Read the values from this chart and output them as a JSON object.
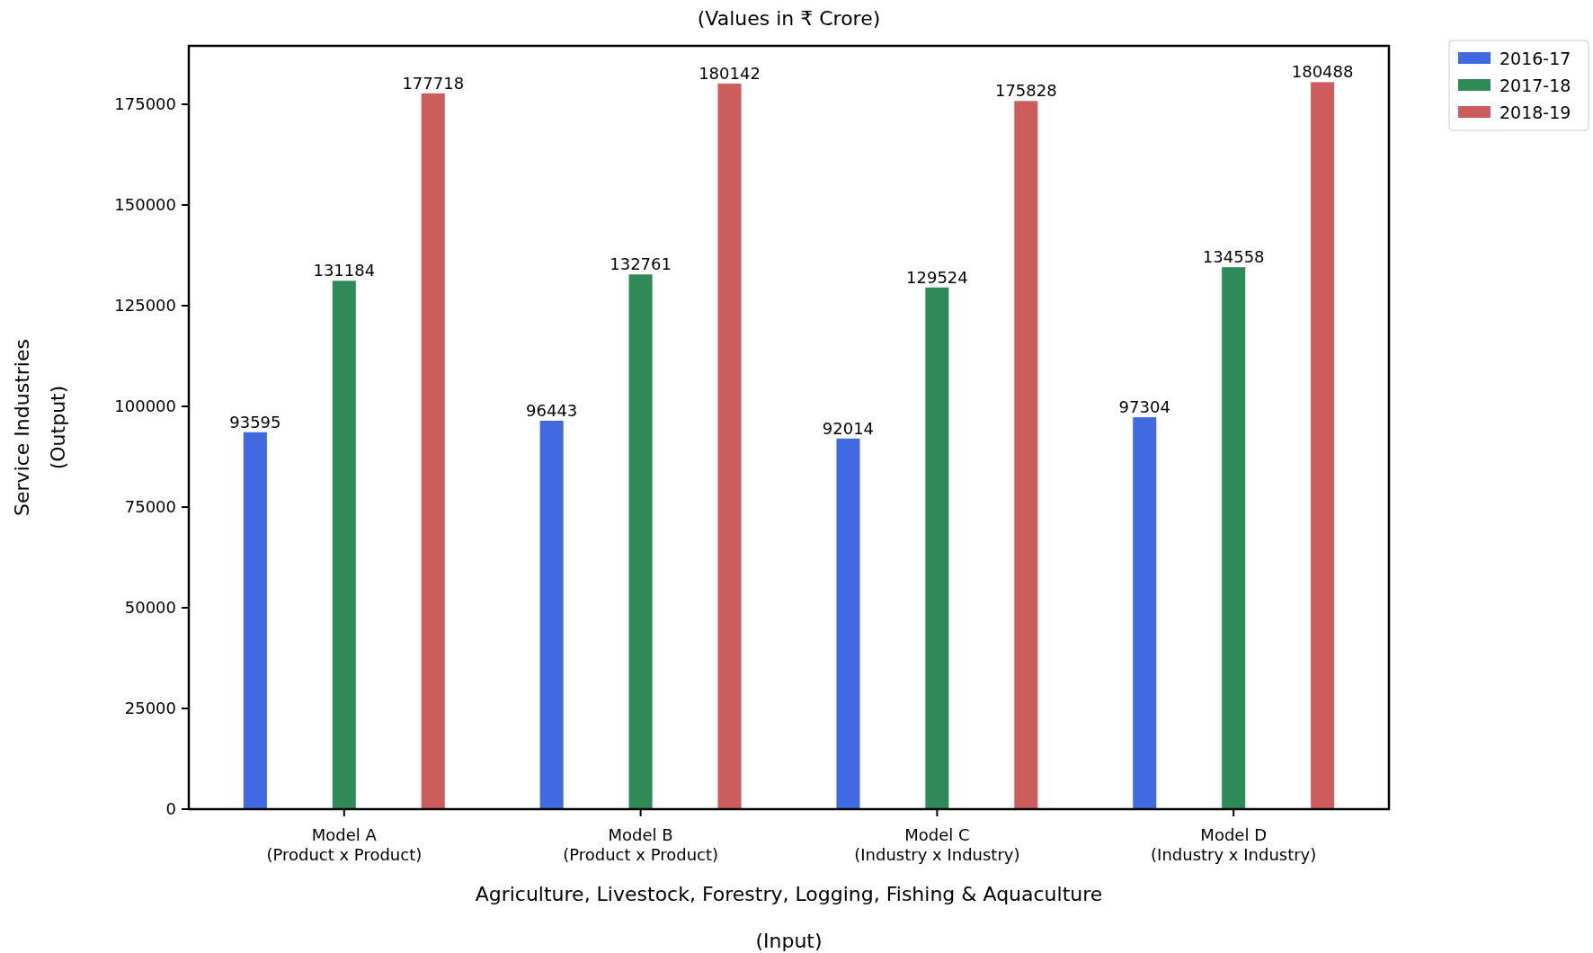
{
  "chart_data": {
    "type": "bar",
    "title": "(Values in ₹ Crore)",
    "xlabel": "Agriculture, Livestock, Forestry, Logging, Fishing & Aquaculture\n\n(Input)",
    "ylabel": "Service Industries\n\n(Output)",
    "categories": [
      "Model A\n(Product x Product)",
      "Model B\n(Product x Product)",
      "Model C\n(Industry x Industry)",
      "Model D\n(Industry x Industry)"
    ],
    "series": [
      {
        "name": "2016-17",
        "color": "#4169e1",
        "values": [
          93595,
          96443,
          92014,
          97304
        ]
      },
      {
        "name": "2017-18",
        "color": "#2e8b57",
        "values": [
          131184,
          132761,
          129524,
          134558
        ]
      },
      {
        "name": "2018-19",
        "color": "#cd5c5c",
        "values": [
          177718,
          180142,
          175828,
          180488
        ]
      }
    ],
    "ylim": [
      0,
      189512
    ],
    "yticks": [
      0,
      25000,
      50000,
      75000,
      100000,
      125000,
      150000,
      175000
    ],
    "grid": false,
    "legend": "top right",
    "data_labels": true
  }
}
